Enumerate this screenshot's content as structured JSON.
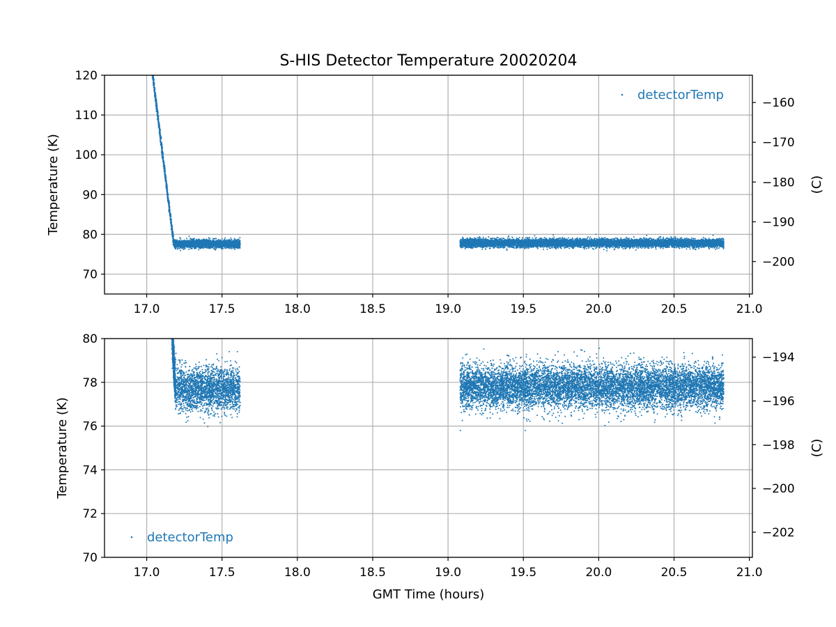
{
  "figure": {
    "title": "S-HIS Detector Temperature 20020204",
    "xlabel": "GMT Time (hours)",
    "series_color": "#1f77b4"
  },
  "chart_data": [
    {
      "type": "scatter",
      "panel": "top",
      "ylabel": "Temperature (K)",
      "y2label": "(C)",
      "xlim": [
        16.72,
        21.02
      ],
      "ylim": [
        65,
        120
      ],
      "xticks": [
        "17.0",
        "17.5",
        "18.0",
        "18.5",
        "19.0",
        "19.5",
        "20.0",
        "20.5",
        "21.0"
      ],
      "yticks": [
        "70",
        "80",
        "90",
        "100",
        "110",
        "120"
      ],
      "y2ticks": [
        "−160",
        "−170",
        "−180",
        "−190",
        "−200"
      ],
      "grid": true,
      "legend": {
        "label": "detectorTemp",
        "placement": "upper right"
      },
      "series": [
        {
          "name": "detectorTemp",
          "segments": [
            {
              "kind": "cooldown",
              "x_start": 17.03,
              "x_end": 17.18,
              "y_start": 123.0,
              "y_end": 77.5
            },
            {
              "kind": "steady",
              "x_start": 17.18,
              "x_end": 17.62,
              "mean": 77.6,
              "spread": 0.5,
              "min": 75.8,
              "max": 80.0
            },
            {
              "kind": "steady",
              "x_start": 19.08,
              "x_end": 20.83,
              "mean": 77.8,
              "spread": 0.5,
              "min": 75.8,
              "max": 80.0
            }
          ]
        }
      ]
    },
    {
      "type": "scatter",
      "panel": "bottom",
      "ylabel": "Temperature (K)",
      "y2label": "(C)",
      "xlim": [
        16.72,
        21.02
      ],
      "ylim": [
        70,
        80
      ],
      "xticks": [
        "17.0",
        "17.5",
        "18.0",
        "18.5",
        "19.0",
        "19.5",
        "20.0",
        "20.5",
        "21.0"
      ],
      "yticks": [
        "70",
        "72",
        "74",
        "76",
        "78",
        "80"
      ],
      "y2ticks": [
        "−194",
        "−196",
        "−198",
        "−200",
        "−202"
      ],
      "grid": true,
      "legend": {
        "label": "detectorTemp",
        "placement": "lower left"
      },
      "series": [
        {
          "name": "detectorTemp",
          "segments": [
            {
              "kind": "cooldown",
              "x_start": 17.17,
              "x_end": 17.19,
              "y_start": 80.0,
              "y_end": 77.8
            },
            {
              "kind": "steady",
              "x_start": 17.19,
              "x_end": 17.62,
              "mean": 77.7,
              "spread": 0.5,
              "min": 75.8,
              "max": 79.4
            },
            {
              "kind": "steady",
              "x_start": 19.08,
              "x_end": 20.83,
              "mean": 77.8,
              "spread": 0.5,
              "min": 75.8,
              "max": 79.9
            }
          ]
        }
      ]
    }
  ]
}
